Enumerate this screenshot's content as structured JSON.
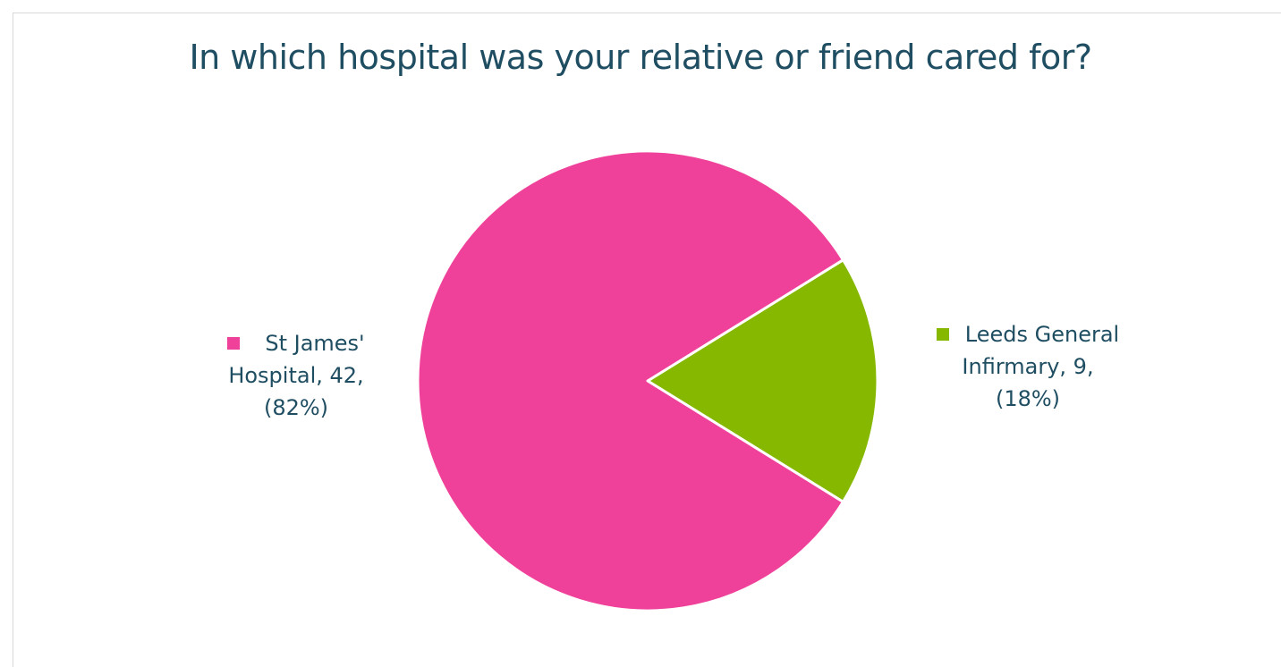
{
  "chart_data": {
    "type": "pie",
    "title": "In which hospital was your relative or friend cared for?",
    "slices": [
      {
        "name": "St James' Hospital",
        "value": 42,
        "percent": 82,
        "color": "#f0419a",
        "label_lines": [
          "St James'",
          "Hospital, 42,",
          "(82%)"
        ]
      },
      {
        "name": "Leeds General Infirmary",
        "value": 9,
        "percent": 18,
        "color": "#86b800",
        "label_lines": [
          "Leeds General",
          "Infirmary, 9,",
          "(18%)"
        ]
      }
    ],
    "legend": "none"
  }
}
